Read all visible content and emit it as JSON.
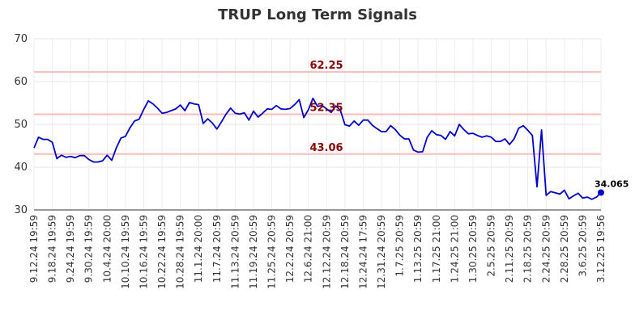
{
  "chart_data": {
    "type": "line",
    "title": "TRUP Long Term Signals",
    "ylim": [
      30,
      70
    ],
    "yticks": [
      30,
      40,
      50,
      60,
      70
    ],
    "grid": true,
    "line_color": "#0000cc",
    "hline_color": "#ffbbbb",
    "hline_label_color": "#8b0000",
    "x_tick_labels": [
      "9.12.24 19:59",
      "9.18.24 19:59",
      "9.24.24 19:59",
      "9.30.24 19:59",
      "10.4.24 20:00",
      "10.10.24 19:59",
      "10.16.24 19:59",
      "10.22.24 19:59",
      "10.28.24 19:59",
      "11.1.24 20:00",
      "11.7.24 20:59",
      "11.13.24 20:59",
      "11.19.24 20:59",
      "11.25.24 20:59",
      "12.2.24 20:59",
      "12.6.24 21:00",
      "12.12.24 20:59",
      "12.18.24 20:59",
      "12.24.24 17:59",
      "12.31.24 20:59",
      "1.7.25 20:59",
      "1.13.25 20:59",
      "1.17.25 21:00",
      "1.24.25 21:00",
      "1.30.25 20:59",
      "2.5.25 20:59",
      "2.11.25 20:59",
      "2.18.25 20:59",
      "2.24.25 20:59",
      "2.28.25 20:59",
      "3.6.25 20:59",
      "3.12.25 19:56"
    ],
    "horizontal_lines": [
      {
        "value": 62.25,
        "label": "62.25"
      },
      {
        "value": 52.35,
        "label": "52.35"
      },
      {
        "value": 43.06,
        "label": "43.06"
      }
    ],
    "last_value_label": "34.065",
    "series": [
      {
        "values": [
          44.5,
          47.0,
          46.5,
          46.5,
          45.8,
          42.0,
          42.8,
          42.3,
          42.5,
          42.2,
          42.7,
          42.7,
          41.8,
          41.2,
          41.2,
          41.5,
          42.8,
          41.6,
          44.5,
          46.8,
          47.2,
          49.2,
          50.8,
          51.2,
          53.5,
          55.5,
          54.8,
          53.8,
          52.6,
          52.8,
          53.2,
          53.6,
          54.5,
          53.2,
          55.1,
          54.8,
          54.6,
          50.2,
          51.3,
          50.3,
          48.9,
          50.6,
          52.4,
          53.8,
          52.6,
          52.4,
          52.7,
          51.0,
          53.1,
          51.7,
          52.6,
          53.6,
          53.5,
          54.4,
          53.6,
          53.5,
          53.7,
          54.6,
          55.8,
          51.6,
          53.4,
          56.1,
          54.2,
          54.4,
          53.6,
          52.8,
          54.3,
          53.3,
          49.9,
          49.6,
          50.8,
          49.8,
          51.0,
          51.0,
          49.8,
          49.0,
          48.3,
          48.3,
          49.7,
          48.8,
          47.5,
          46.6,
          46.6,
          44.0,
          43.5,
          43.6,
          47.0,
          48.5,
          47.6,
          47.4,
          46.5,
          48.3,
          47.3,
          50.0,
          48.8,
          47.8,
          47.9,
          47.4,
          47.0,
          47.3,
          47.0,
          46.0,
          46.0,
          46.6,
          45.3,
          46.6,
          49.1,
          49.7,
          48.6,
          47.4,
          35.4,
          48.7,
          33.4,
          34.3,
          34.0,
          33.7,
          34.6,
          32.6,
          33.3,
          33.9,
          32.8,
          33.0,
          32.5,
          33.0,
          34.065
        ]
      }
    ]
  }
}
